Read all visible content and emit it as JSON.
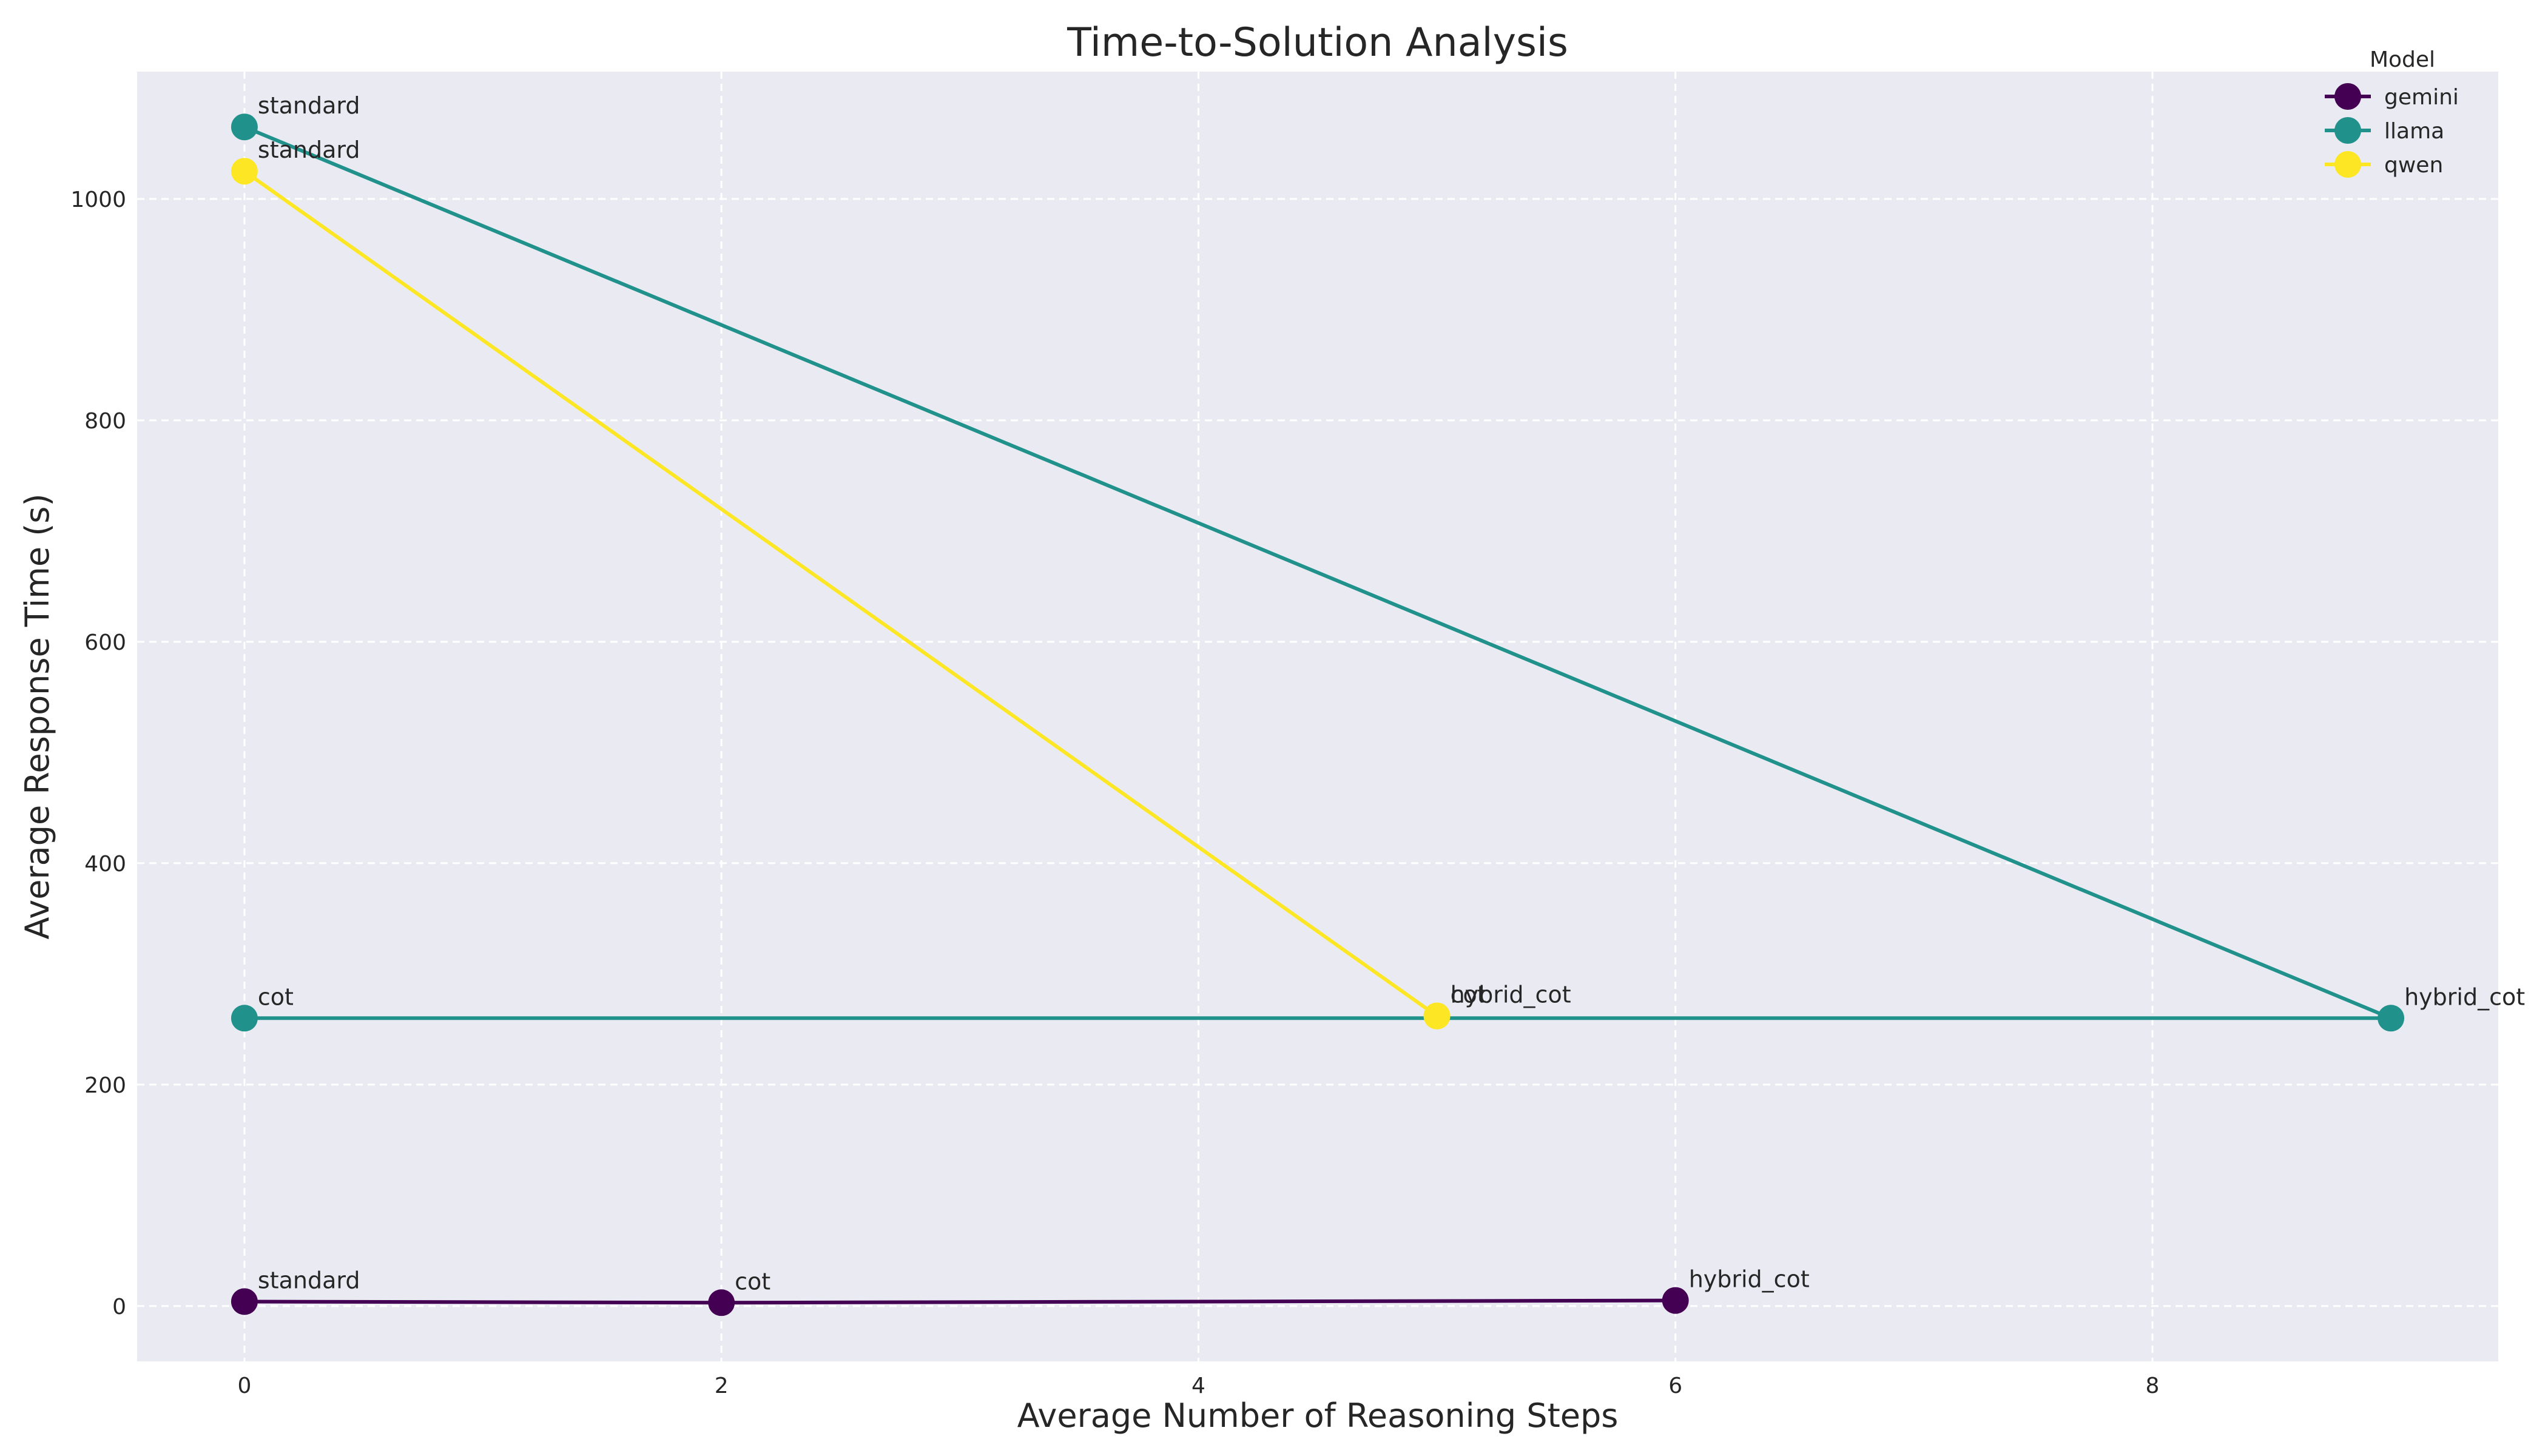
{
  "chart_data": {
    "type": "line",
    "title": "Time-to-Solution Analysis",
    "xlabel": "Average Number of Reasoning Steps",
    "ylabel": "Average Response Time (s)",
    "xlim": [
      -0.45,
      9.45
    ],
    "ylim": [
      -50,
      1115
    ],
    "xticks": [
      0,
      2,
      4,
      6,
      8
    ],
    "yticks": [
      0,
      200,
      400,
      600,
      800,
      1000
    ],
    "grid": true,
    "legend": {
      "title": "Model",
      "placement": "top-right"
    },
    "series": [
      {
        "name": "gemini",
        "color": "#440154",
        "points": [
          {
            "x": 0,
            "y": 4,
            "label": "standard"
          },
          {
            "x": 2,
            "y": 3,
            "label": "cot"
          },
          {
            "x": 6,
            "y": 5,
            "label": "hybrid_cot"
          }
        ]
      },
      {
        "name": "llama",
        "color": "#21918c",
        "points": [
          {
            "x": 0,
            "y": 1065,
            "label": "standard"
          },
          {
            "x": 9,
            "y": 260,
            "label": "hybrid_cot"
          },
          {
            "x": 0,
            "y": 260,
            "label": "cot"
          }
        ]
      },
      {
        "name": "qwen",
        "color": "#fde725",
        "points": [
          {
            "x": 0,
            "y": 1025,
            "label": "standard"
          },
          {
            "x": 5,
            "y": 262,
            "label": "hybrid_cot"
          },
          {
            "x": 5,
            "y": 262,
            "label": "cot"
          }
        ]
      }
    ]
  }
}
